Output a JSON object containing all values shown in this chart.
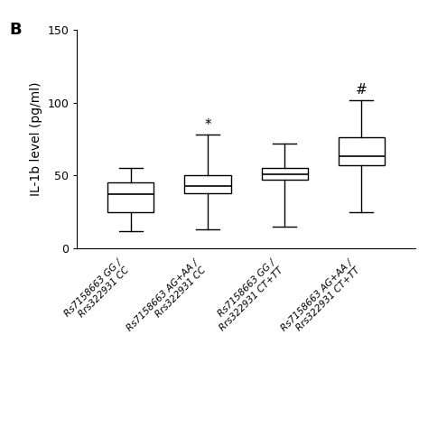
{
  "title_label": "B",
  "ylabel": "IL-1b level (pg/ml)",
  "ylim": [
    0,
    150
  ],
  "yticks": [
    0,
    50,
    100,
    150
  ],
  "groups": [
    {
      "line1": "Rs7158663 GG /",
      "line2": "Rrs322931 CC",
      "whislo": 12,
      "q1": 25,
      "med": 37,
      "q3": 45,
      "whishi": 55,
      "annotation": null
    },
    {
      "line1": "Rs7158663 AG+AA /",
      "line2": "Rrs322931 CC",
      "whislo": 13,
      "q1": 38,
      "med": 43,
      "q3": 50,
      "whishi": 78,
      "annotation": "*"
    },
    {
      "line1": "Rs7158663 GG /",
      "line2": "Rrs322931 CT+TT",
      "whislo": 15,
      "q1": 47,
      "med": 51,
      "q3": 55,
      "whishi": 72,
      "annotation": null
    },
    {
      "line1": "Rs7158663 AG+AA /",
      "line2": "Rrs322931 CT+TT",
      "whislo": 25,
      "q1": 57,
      "med": 63,
      "q3": 76,
      "whishi": 102,
      "annotation": "#"
    }
  ],
  "box_color": "white",
  "box_edge_color": "black",
  "median_color": "black",
  "whisker_color": "black",
  "cap_color": "black",
  "background_color": "white",
  "annotation_fontsize": 11,
  "label_fontsize": 7.5,
  "ylabel_fontsize": 10,
  "tick_fontsize": 9,
  "panel_fontsize": 13
}
